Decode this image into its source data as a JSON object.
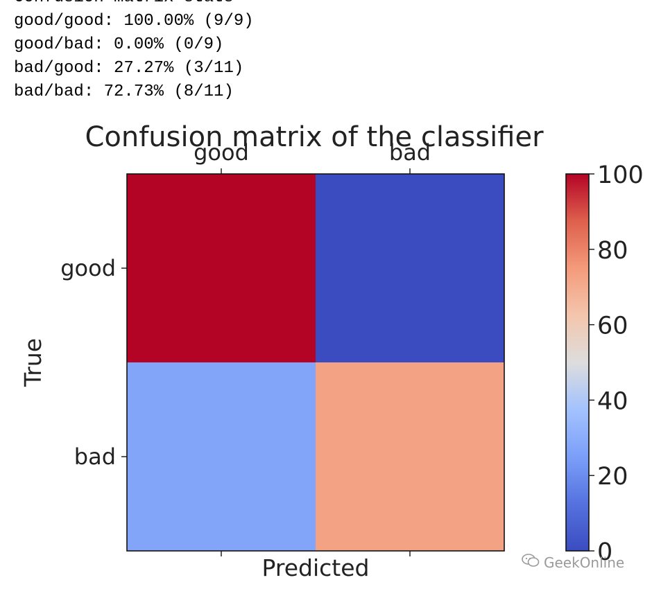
{
  "console": {
    "clipped_line": "Confusion matrix stats",
    "lines": [
      "good/good: 100.00% (9/9)",
      "good/bad: 0.00% (0/9)",
      "bad/good: 27.27% (3/11)",
      "bad/bad: 72.73% (8/11)"
    ]
  },
  "chart_data": {
    "type": "heatmap",
    "title": "Confusion matrix of the classifier",
    "xlabel": "Predicted",
    "ylabel": "True",
    "x_categories": [
      "good",
      "bad"
    ],
    "y_categories": [
      "good",
      "bad"
    ],
    "values": [
      [
        100.0,
        0.0
      ],
      [
        27.27,
        72.73
      ]
    ],
    "colormap": "coolwarm",
    "colorbar": {
      "min": 0,
      "max": 100,
      "ticks": [
        0,
        20,
        40,
        60,
        80,
        100
      ]
    },
    "x_tick_position": "top"
  },
  "watermark": {
    "text": "GeekOnline",
    "icon": "wechat-icon"
  }
}
